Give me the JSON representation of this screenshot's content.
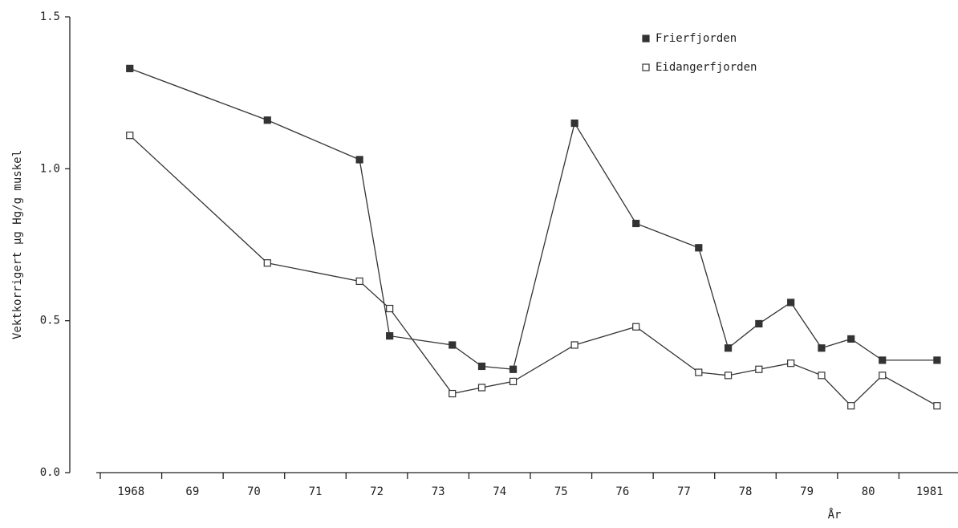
{
  "chart_data": {
    "type": "line",
    "ylabel": "Vektkorrigert µg Hg/g muskel",
    "xlabel": "År",
    "xlim": [
      1968,
      1982
    ],
    "xticks": [
      {
        "value": 1968,
        "label": "1968"
      },
      {
        "value": 1969,
        "label": "69"
      },
      {
        "value": 1970,
        "label": "70"
      },
      {
        "value": 1971,
        "label": "71"
      },
      {
        "value": 1972,
        "label": "72"
      },
      {
        "value": 1973,
        "label": "73"
      },
      {
        "value": 1974,
        "label": "74"
      },
      {
        "value": 1975,
        "label": "75"
      },
      {
        "value": 1976,
        "label": "76"
      },
      {
        "value": 1977,
        "label": "77"
      },
      {
        "value": 1978,
        "label": "78"
      },
      {
        "value": 1979,
        "label": "79"
      },
      {
        "value": 1980,
        "label": "80"
      },
      {
        "value": 1981,
        "label": "1981"
      }
    ],
    "ylim": [
      0,
      1.5
    ],
    "yticks": [
      {
        "value": 0,
        "label": "0.0"
      },
      0.5,
      {
        "value": 1,
        "label": "1.0"
      },
      {
        "value": 1.5,
        "label": "1.5"
      }
    ],
    "grid": false,
    "legend": "top-right",
    "x": [
      1968.48,
      1970.72,
      1972.22,
      1972.71,
      1973.73,
      1974.21,
      1974.72,
      1975.72,
      1976.72,
      1977.74,
      1978.22,
      1978.72,
      1979.24,
      1979.74,
      1980.22,
      1980.73,
      1981.62
    ],
    "series": [
      {
        "name": "Frierfjorden",
        "color": "#333333",
        "marker": "filled",
        "values": [
          1.33,
          1.16,
          1.03,
          0.45,
          0.42,
          0.35,
          0.34,
          1.15,
          0.82,
          0.74,
          0.41,
          0.49,
          0.56,
          0.41,
          0.44,
          0.37,
          0.37
        ]
      },
      {
        "name": "Eidangerfjorden",
        "color": "#333333",
        "marker": "open",
        "values": [
          1.11,
          0.69,
          0.63,
          0.54,
          0.26,
          0.28,
          0.3,
          0.42,
          0.48,
          0.33,
          0.32,
          0.34,
          0.36,
          0.32,
          0.22,
          0.32,
          0.22
        ]
      }
    ]
  }
}
